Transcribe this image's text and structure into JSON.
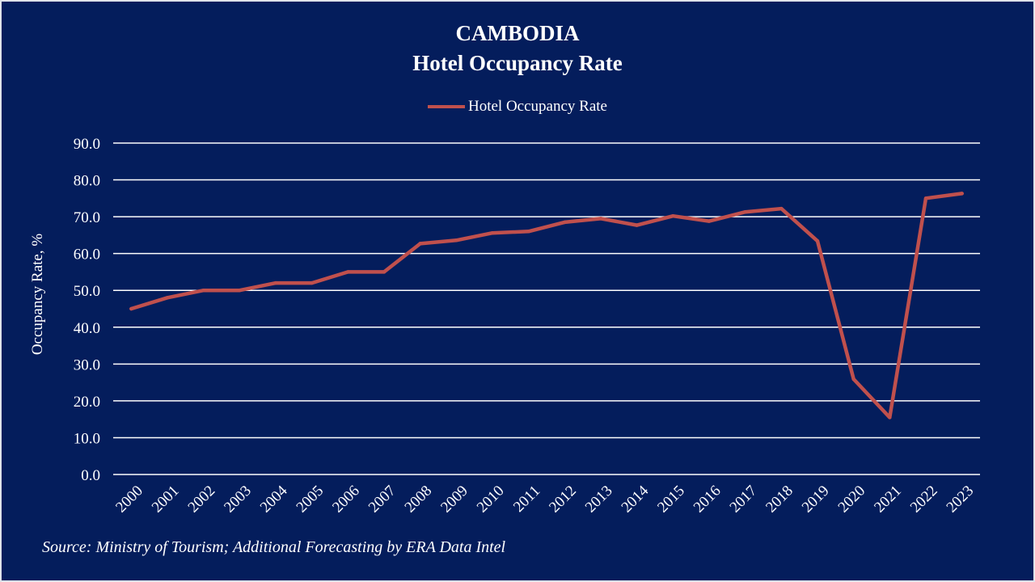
{
  "chart_data": {
    "type": "line",
    "title": "CAMBODIA",
    "subtitle": "Hotel Occupancy Rate",
    "xlabel": "",
    "ylabel": "Occupancy Rate, %",
    "ylim": [
      0,
      90
    ],
    "yticks": [
      "0.0",
      "10.0",
      "20.0",
      "30.0",
      "40.0",
      "50.0",
      "60.0",
      "70.0",
      "80.0",
      "90.0"
    ],
    "grid": true,
    "legend_position": "top-center",
    "x": [
      "2000",
      "2001",
      "2002",
      "2003",
      "2004",
      "2005",
      "2006",
      "2007",
      "2008",
      "2009",
      "2010",
      "2011",
      "2012",
      "2013",
      "2014",
      "2015",
      "2016",
      "2017",
      "2018",
      "2019",
      "2020",
      "2021",
      "2022",
      "2023"
    ],
    "series": [
      {
        "name": "Hotel Occupancy Rate",
        "color": "#c0504d",
        "values": [
          45.0,
          48.0,
          50.0,
          50.0,
          52.0,
          52.0,
          55.0,
          55.0,
          62.7,
          63.6,
          65.6,
          66.0,
          68.5,
          69.5,
          67.7,
          70.2,
          68.8,
          71.3,
          72.2,
          63.4,
          25.9,
          15.5,
          75.0,
          76.3
        ]
      }
    ],
    "source": "Source: Ministry of Tourism; Additional Forecasting by ERA Data Intel"
  },
  "colors": {
    "background": "#041d5c",
    "gridline": "#ffffff",
    "line": "#c0504d",
    "text": "#ffffff"
  }
}
